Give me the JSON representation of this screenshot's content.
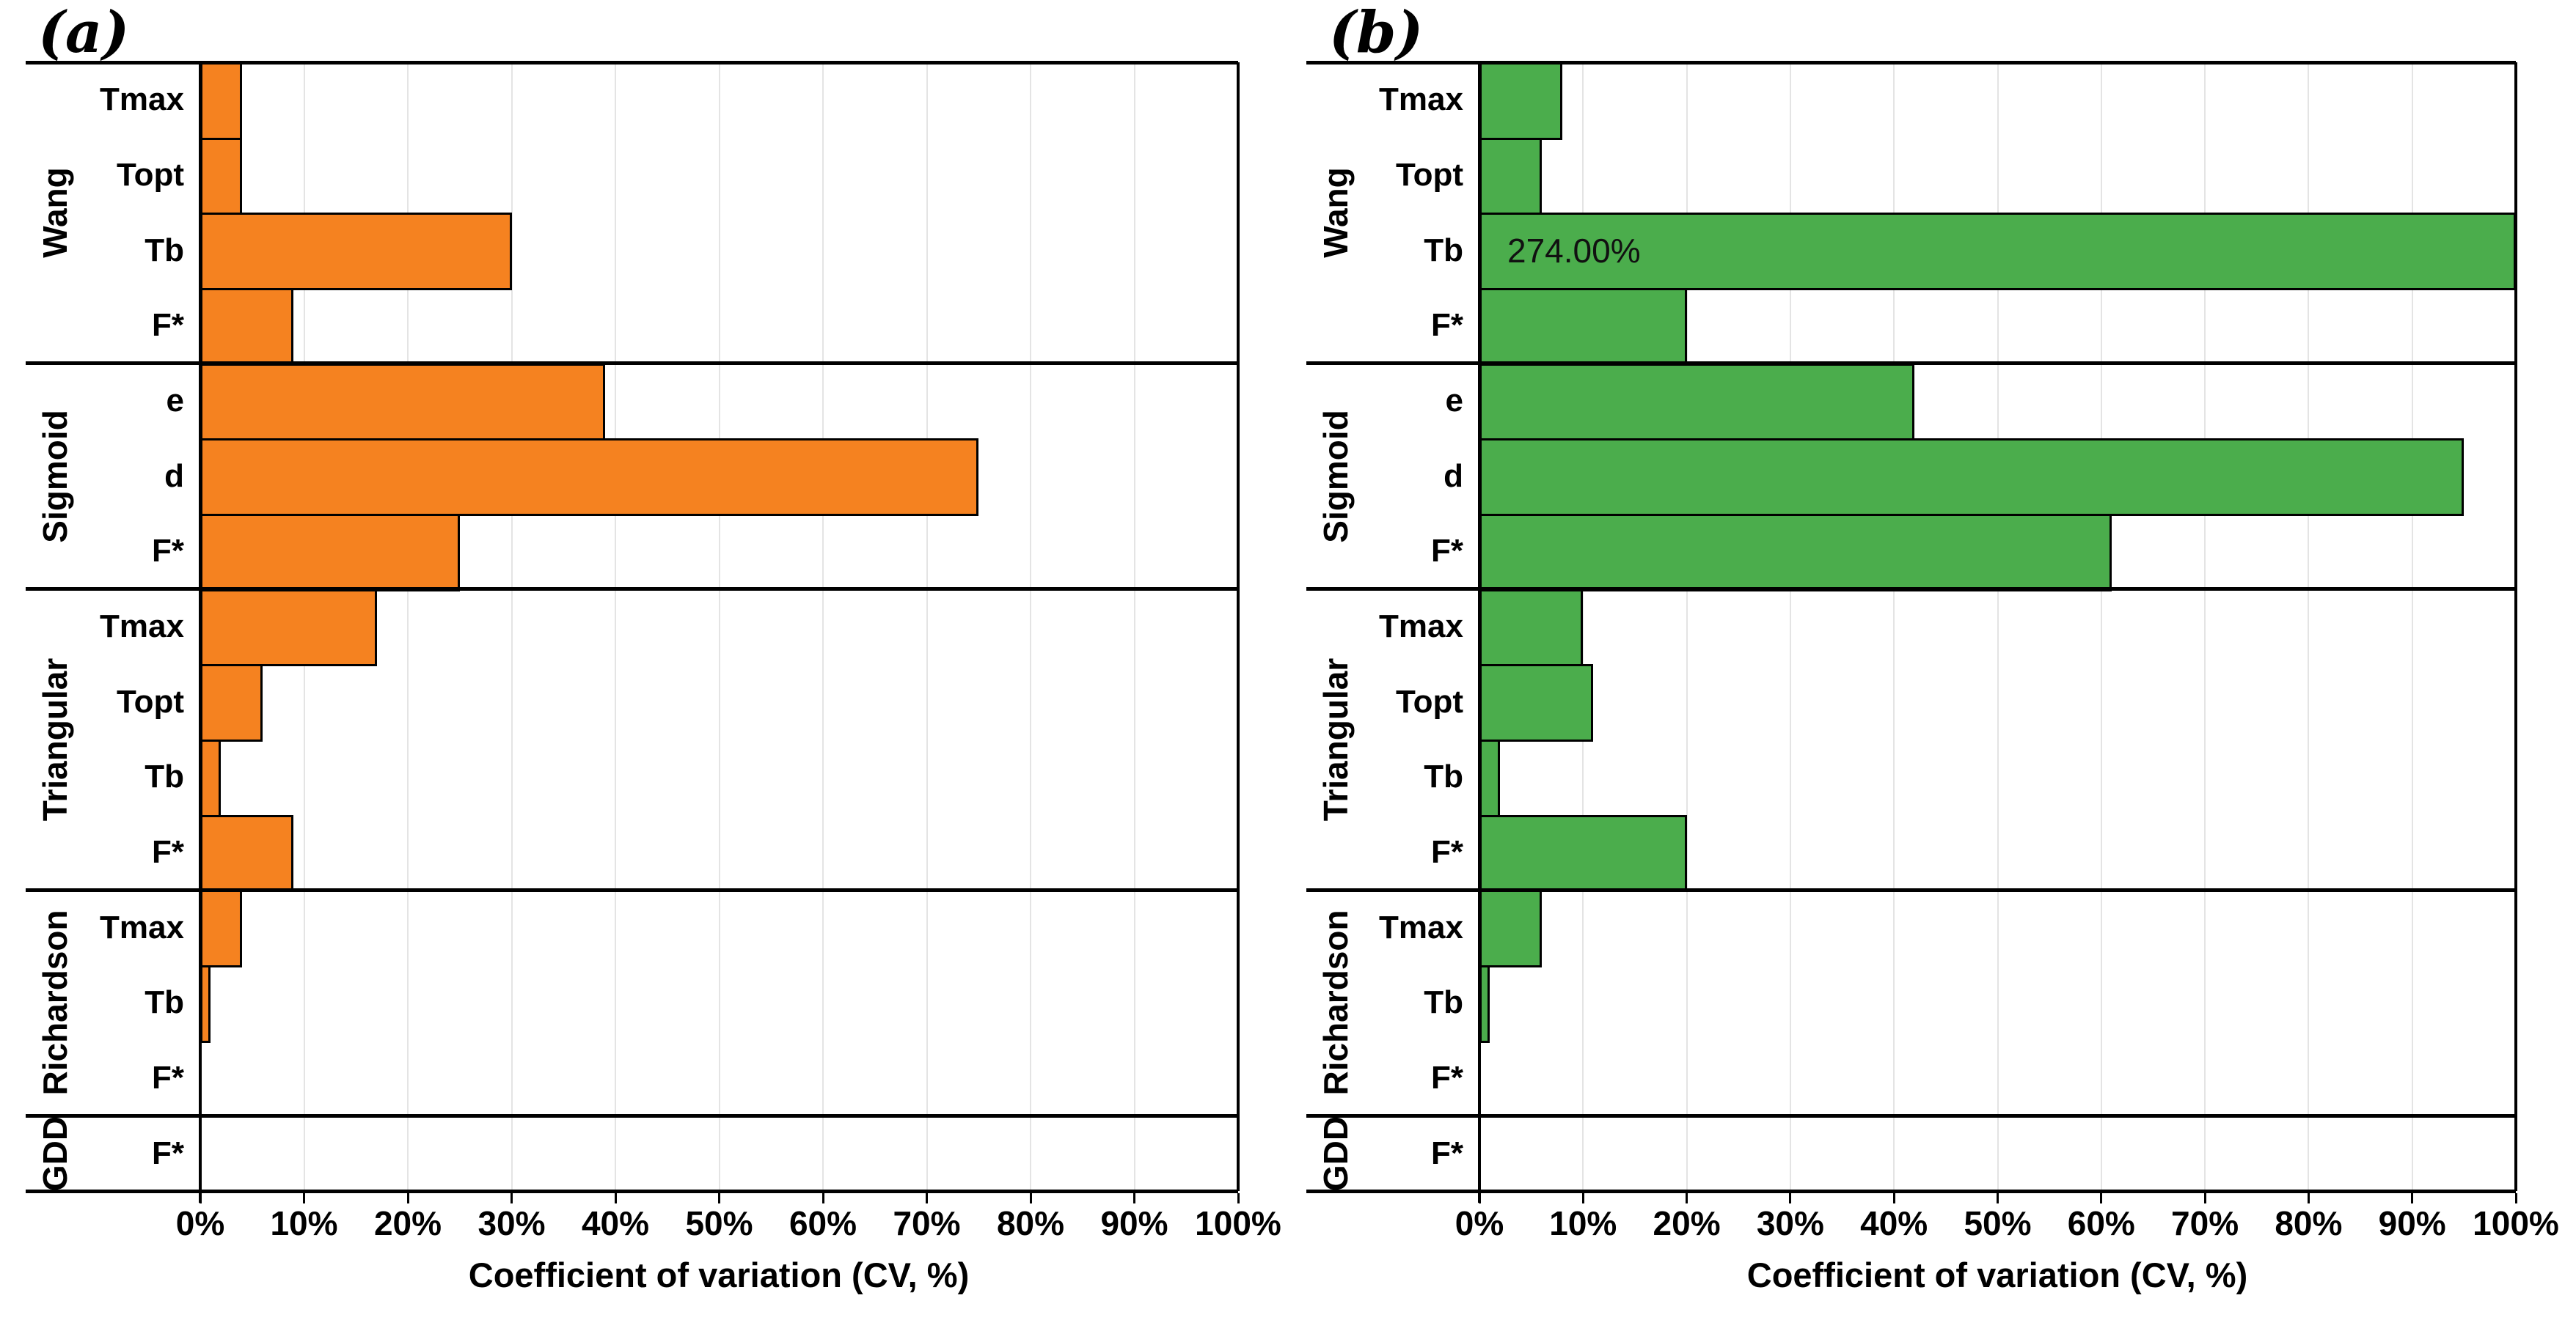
{
  "figure": {
    "background": "#ffffff",
    "panel_letters": [
      "(a)",
      "(b)"
    ]
  },
  "chart_data": [
    {
      "type": "bar",
      "orientation": "horizontal",
      "panel": "(a)",
      "bar_color": "#F58220",
      "bar_border_color": "#000000",
      "xlabel": "Coefficient of variation (CV, %)",
      "xlim": [
        0,
        100
      ],
      "x_ticks": [
        "0%",
        "10%",
        "20%",
        "30%",
        "40%",
        "50%",
        "60%",
        "70%",
        "80%",
        "90%",
        "100%"
      ],
      "grid": "vertical-light-gray",
      "groups": [
        {
          "name": "Wang",
          "bars": [
            {
              "param": "Tmax",
              "value": 4
            },
            {
              "param": "Topt",
              "value": 4
            },
            {
              "param": "Tb",
              "value": 30
            },
            {
              "param": "F*",
              "value": 9
            }
          ]
        },
        {
          "name": "Sigmoid",
          "bars": [
            {
              "param": "e",
              "value": 39
            },
            {
              "param": "d",
              "value": 75
            },
            {
              "param": "F*",
              "value": 25
            }
          ]
        },
        {
          "name": "Triangular",
          "bars": [
            {
              "param": "Tmax",
              "value": 17
            },
            {
              "param": "Topt",
              "value": 6
            },
            {
              "param": "Tb",
              "value": 2
            },
            {
              "param": "F*",
              "value": 9
            }
          ]
        },
        {
          "name": "Richardson",
          "bars": [
            {
              "param": "Tmax",
              "value": 4
            },
            {
              "param": "Tb",
              "value": 1
            },
            {
              "param": "F*",
              "value": 0
            }
          ]
        },
        {
          "name": "GDD",
          "bars": [
            {
              "param": "F*",
              "value": 0
            }
          ]
        }
      ]
    },
    {
      "type": "bar",
      "orientation": "horizontal",
      "panel": "(b)",
      "bar_color": "#4BAD4C",
      "bar_border_color": "#000000",
      "xlabel": "Coefficient of variation (CV, %)",
      "xlim": [
        0,
        100
      ],
      "x_ticks": [
        "0%",
        "10%",
        "20%",
        "30%",
        "40%",
        "50%",
        "60%",
        "70%",
        "80%",
        "90%",
        "100%"
      ],
      "grid": "vertical-light-gray",
      "groups": [
        {
          "name": "Wang",
          "bars": [
            {
              "param": "Tmax",
              "value": 8
            },
            {
              "param": "Topt",
              "value": 6
            },
            {
              "param": "Tb",
              "value": 274,
              "label": "274.00%",
              "clipped_at": 100
            },
            {
              "param": "F*",
              "value": 20
            }
          ]
        },
        {
          "name": "Sigmoid",
          "bars": [
            {
              "param": "e",
              "value": 42
            },
            {
              "param": "d",
              "value": 95
            },
            {
              "param": "F*",
              "value": 61
            }
          ]
        },
        {
          "name": "Triangular",
          "bars": [
            {
              "param": "Tmax",
              "value": 10
            },
            {
              "param": "Topt",
              "value": 11
            },
            {
              "param": "Tb",
              "value": 2
            },
            {
              "param": "F*",
              "value": 20
            }
          ]
        },
        {
          "name": "Richardson",
          "bars": [
            {
              "param": "Tmax",
              "value": 6
            },
            {
              "param": "Tb",
              "value": 1
            },
            {
              "param": "F*",
              "value": 0
            }
          ]
        },
        {
          "name": "GDD",
          "bars": [
            {
              "param": "F*",
              "value": 0
            }
          ]
        }
      ]
    }
  ]
}
